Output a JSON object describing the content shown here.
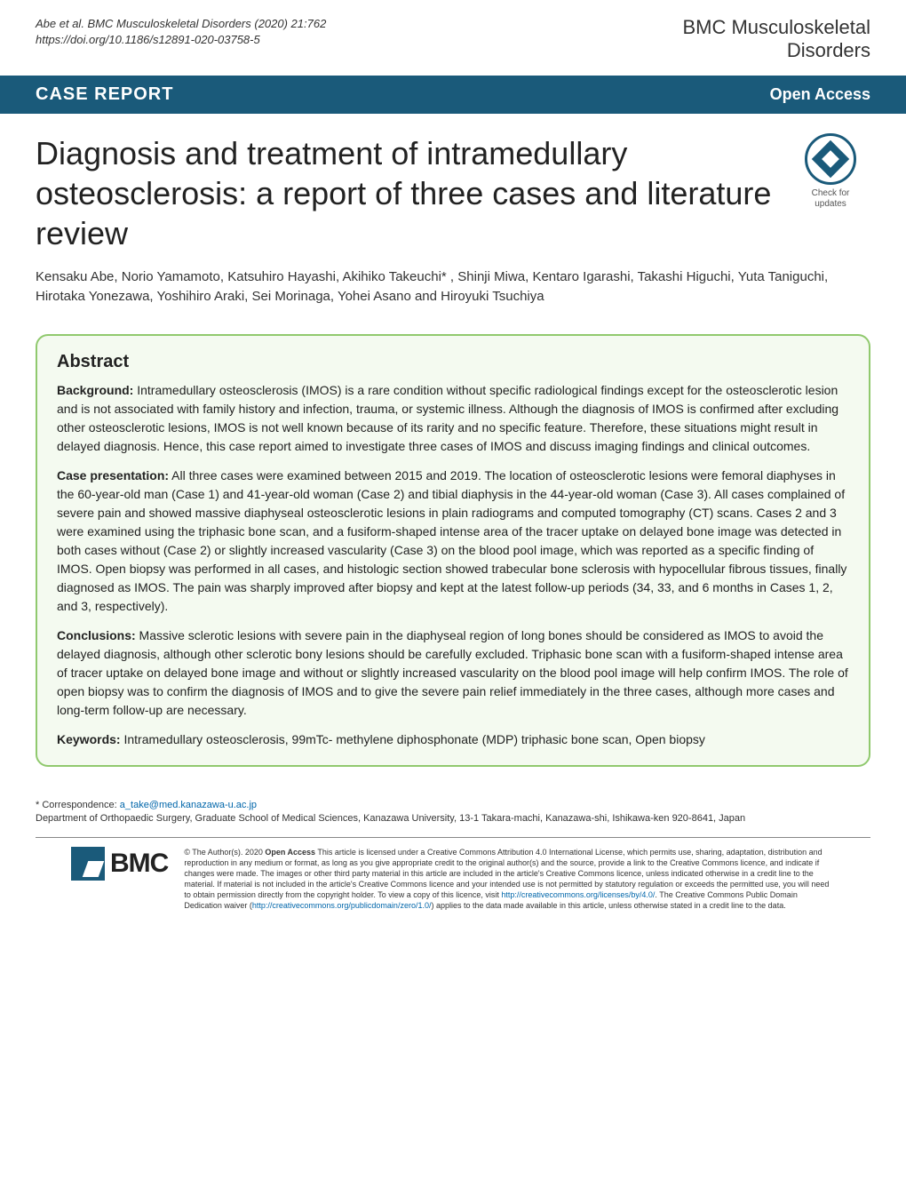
{
  "header": {
    "citation_line1": "Abe et al. BMC Musculoskeletal Disorders       (2020) 21:762",
    "citation_line2": "https://doi.org/10.1186/s12891-020-03758-5",
    "journal_line1": "BMC Musculoskeletal",
    "journal_line2": "Disorders"
  },
  "section_bar": {
    "left": "CASE REPORT",
    "right": "Open Access"
  },
  "title": "Diagnosis and treatment of intramedullary osteosclerosis: a report of three cases and literature review",
  "check_updates": {
    "line1": "Check for",
    "line2": "updates"
  },
  "authors": "Kensaku Abe, Norio Yamamoto, Katsuhiro Hayashi, Akihiko Takeuchi*  , Shinji Miwa, Kentaro Igarashi, Takashi Higuchi, Yuta Taniguchi, Hirotaka Yonezawa, Yoshihiro Araki, Sei Morinaga, Yohei Asano and Hiroyuki Tsuchiya",
  "abstract": {
    "heading": "Abstract",
    "background_label": "Background:",
    "background_text": " Intramedullary osteosclerosis (IMOS) is a rare condition without specific radiological findings except for the osteosclerotic lesion and is not associated with family history and infection, trauma, or systemic illness. Although the diagnosis of IMOS is confirmed after excluding other osteosclerotic lesions, IMOS is not well known because of its rarity and no specific feature. Therefore, these situations might result in delayed diagnosis. Hence, this case report aimed to investigate three cases of IMOS and discuss imaging findings and clinical outcomes.",
    "case_label": "Case presentation:",
    "case_text": " All three cases were examined between 2015 and 2019. The location of osteosclerotic lesions were femoral diaphyses in the 60-year-old man (Case 1) and 41-year-old woman (Case 2) and tibial diaphysis in the 44-year-old woman (Case 3). All cases complained of severe pain and showed massive diaphyseal osteosclerotic lesions in plain radiograms and computed tomography (CT) scans. Cases 2 and 3 were examined using the triphasic bone scan, and a fusiform-shaped intense area of the tracer uptake on delayed bone image was detected in both cases without (Case 2) or slightly increased vascularity (Case 3) on the blood pool image, which was reported as a specific finding of IMOS. Open biopsy was performed in all cases, and histologic section showed trabecular bone sclerosis with hypocellular fibrous tissues, finally diagnosed as IMOS. The pain was sharply improved after biopsy and kept at the latest follow-up periods (34, 33, and 6 months in Cases 1, 2, and 3, respectively).",
    "conclusions_label": "Conclusions:",
    "conclusions_text": " Massive sclerotic lesions with severe pain in the diaphyseal region of long bones should be considered as IMOS to avoid the delayed diagnosis, although other sclerotic bony lesions should be carefully excluded. Triphasic bone scan with a fusiform-shaped intense area of tracer uptake on delayed bone image and without or slightly increased vascularity on the blood pool image will help confirm IMOS. The role of open biopsy was to confirm the diagnosis of IMOS and to give the severe pain relief immediately in the three cases, although more cases and long-term follow-up are necessary.",
    "keywords_label": "Keywords:",
    "keywords_text": " Intramedullary osteosclerosis, 99mTc- methylene diphosphonate (MDP) triphasic bone scan, Open biopsy"
  },
  "correspondence": {
    "line1": "* Correspondence: ",
    "email": "a_take@med.kanazawa-u.ac.jp",
    "line2": "Department of Orthopaedic Surgery, Graduate School of Medical Sciences, Kanazawa University, 13-1 Takara-machi, Kanazawa-shi, Ishikawa-ken 920-8641, Japan"
  },
  "footer": {
    "bmc": "BMC",
    "license_part1": "© The Author(s). 2020 ",
    "license_bold": "Open Access",
    "license_part2": " This article is licensed under a Creative Commons Attribution 4.0 International License, which permits use, sharing, adaptation, distribution and reproduction in any medium or format, as long as you give appropriate credit to the original author(s) and the source, provide a link to the Creative Commons licence, and indicate if changes were made. The images or other third party material in this article are included in the article's Creative Commons licence, unless indicated otherwise in a credit line to the material. If material is not included in the article's Creative Commons licence and your intended use is not permitted by statutory regulation or exceeds the permitted use, you will need to obtain permission directly from the copyright holder. To view a copy of this licence, visit ",
    "license_link1": "http://creativecommons.org/licenses/by/4.0/",
    "license_part3": ". The Creative Commons Public Domain Dedication waiver (",
    "license_link2": "http://creativecommons.org/publicdomain/zero/1.0/",
    "license_part4": ") applies to the data made available in this article, unless otherwise stated in a credit line to the data."
  },
  "colors": {
    "brand_blue": "#1a5a7a",
    "abstract_border": "#90c96e",
    "abstract_bg": "#f4faf0",
    "orcid_green": "#a6ce39",
    "link": "#0066aa"
  }
}
